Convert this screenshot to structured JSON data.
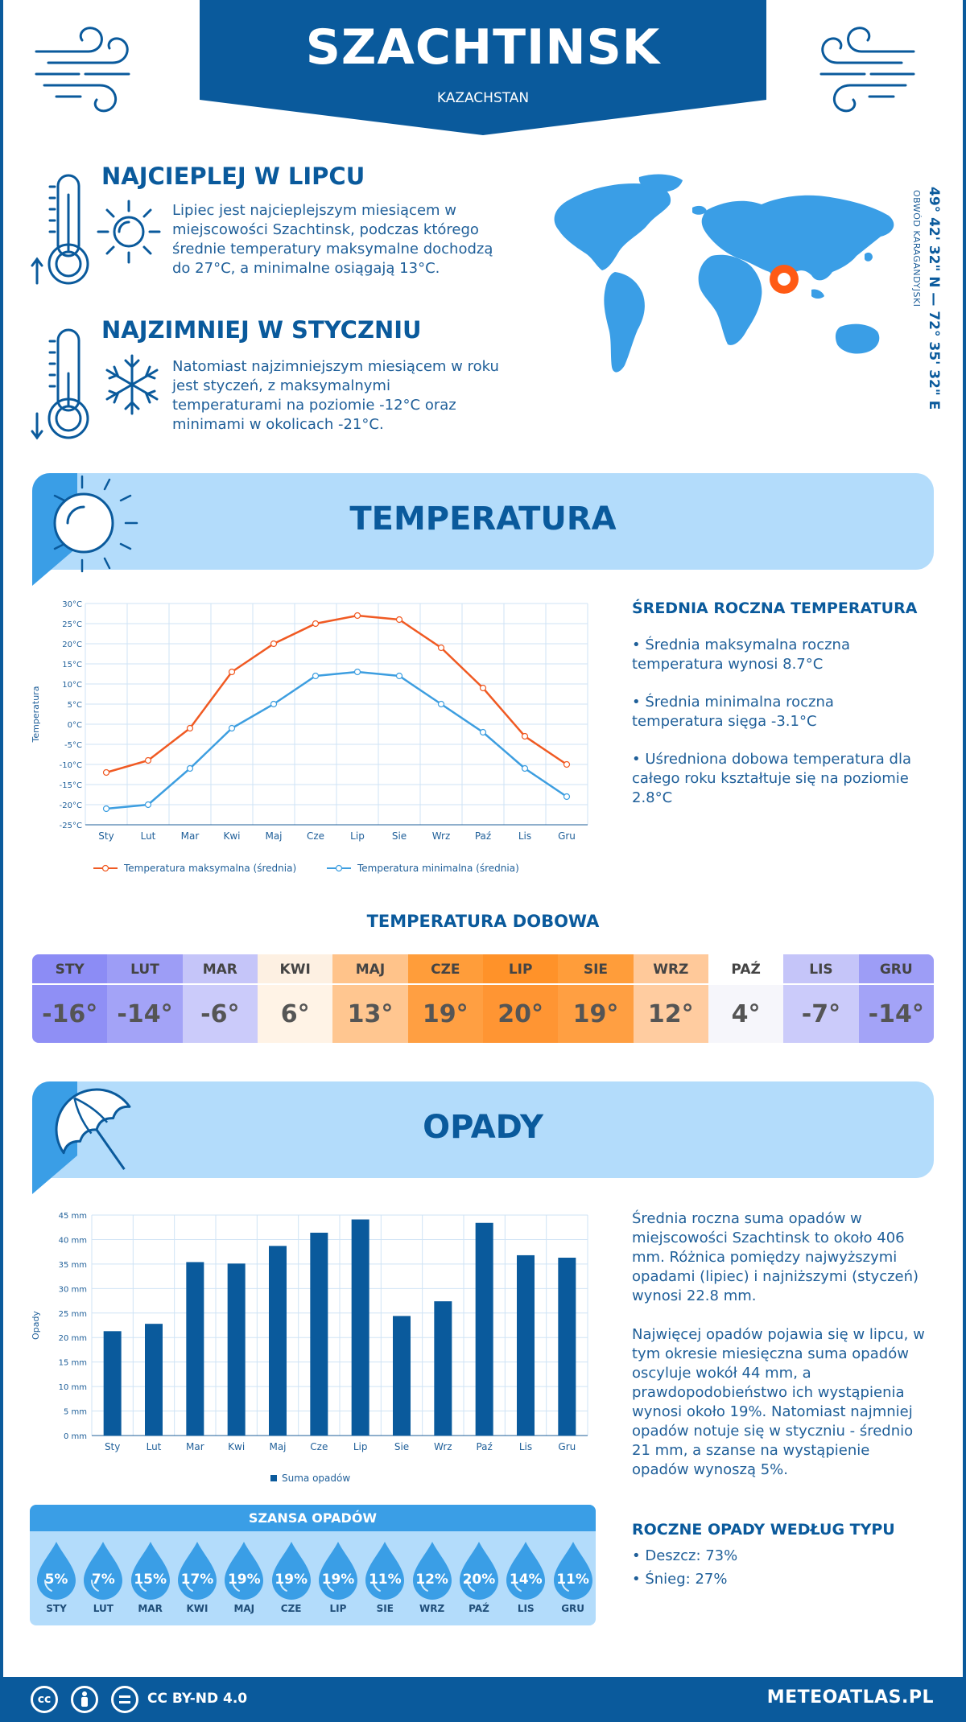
{
  "header": {
    "city": "SZACHTINSK",
    "country": "KAZACHSTAN"
  },
  "warmest": {
    "title": "NAJCIEPLEJ W LIPCU",
    "text": "Lipiec jest najcieplejszym miesiącem w miejscowości Szachtinsk, podczas którego średnie temperatury maksymalne dochodzą do 27°C, a minimalne osiągają 13°C."
  },
  "coldest": {
    "title": "NAJZIMNIEJ W STYCZNIU",
    "text": "Natomiast najzimniejszym miesiącem w roku jest styczeń, z maksymalnymi temperaturami na poziomie -12°C oraz minimami w okolicach -21°C."
  },
  "location": {
    "coords": "49° 42' 32\" N — 72° 35' 32\" E",
    "region": "OBWÓD KARAGANDYJSKI"
  },
  "temperature_section": {
    "title": "TEMPERATURA",
    "summary_title": "ŚREDNIA ROCZNA TEMPERATURA",
    "bullets": [
      "• Średnia maksymalna roczna temperatura wynosi 8.7°C",
      "• Średnia minimalna roczna temperatura sięga -3.1°C",
      "• Uśredniona dobowa temperatura dla całego roku kształtuje się na poziomie 2.8°C"
    ]
  },
  "daily": {
    "title": "TEMPERATURA DOBOWA",
    "months": [
      "STY",
      "LUT",
      "MAR",
      "KWI",
      "MAJ",
      "CZE",
      "LIP",
      "SIE",
      "WRZ",
      "PAŹ",
      "LIS",
      "GRU"
    ],
    "values": [
      "-16°",
      "-14°",
      "-6°",
      "6°",
      "13°",
      "19°",
      "20°",
      "19°",
      "12°",
      "4°",
      "-7°",
      "-14°"
    ],
    "head_colors": [
      "#8c8cf5",
      "#9d9df6",
      "#c5c5f9",
      "#fdf0e2",
      "#ffc38a",
      "#ff9d3a",
      "#ff9229",
      "#ff9d3a",
      "#ffc99a",
      "#ffffff",
      "#c5c5f9",
      "#9d9df6"
    ],
    "value_colors": [
      "#8f8ff5",
      "#a3a3f7",
      "#cbcbfa",
      "#fff3e6",
      "#ffc690",
      "#ff9f42",
      "#ff9533",
      "#ff9f42",
      "#ffcca0",
      "#f6f6fb",
      "#cbcbfa",
      "#a3a3f7"
    ]
  },
  "precip_section": {
    "title": "OPADY",
    "text1": "Średnia roczna suma opadów w miejscowości Szachtinsk to około 406 mm. Różnica pomiędzy najwyższymi opadami (lipiec) i najniższymi (styczeń) wynosi 22.8 mm.",
    "text2": "Najwięcej opadów pojawia się w lipcu, w tym okresie miesięczna suma opadów oscyluje wokół 44 mm, a prawdopodobieństwo ich wystąpienia wynosi około 19%. Natomiast najmniej opadów notuje się w styczniu - średnio 21 mm, a szanse na wystąpienie opadów wynoszą 5%.",
    "types_title": "ROCZNE OPADY WEDŁUG TYPU",
    "types": [
      "• Deszcz: 73%",
      "• Śnieg: 27%"
    ]
  },
  "chance": {
    "title": "SZANSA OPADÓW",
    "months": [
      "STY",
      "LUT",
      "MAR",
      "KWI",
      "MAJ",
      "CZE",
      "LIP",
      "SIE",
      "WRZ",
      "PAŹ",
      "LIS",
      "GRU"
    ],
    "values": [
      "5%",
      "7%",
      "15%",
      "17%",
      "19%",
      "19%",
      "19%",
      "11%",
      "12%",
      "20%",
      "14%",
      "11%"
    ]
  },
  "footer": {
    "license": "CC BY-ND 4.0",
    "site": "METEOATLAS.PL"
  },
  "chart_data": [
    {
      "type": "line",
      "categories": [
        "Sty",
        "Lut",
        "Mar",
        "Kwi",
        "Maj",
        "Cze",
        "Lip",
        "Sie",
        "Wrz",
        "Paź",
        "Lis",
        "Gru"
      ],
      "ylabel": "Temperatura",
      "ylim": [
        -25,
        30
      ],
      "yticks": [
        "30°C",
        "25°C",
        "20°C",
        "15°C",
        "10°C",
        "5°C",
        "0°C",
        "-5°C",
        "-10°C",
        "-15°C",
        "-20°C",
        "-25°C"
      ],
      "grid": true,
      "legend": "bottom",
      "series": [
        {
          "name": "Temperatura maksymalna (średnia)",
          "color": "#f05a23",
          "values": [
            -12,
            -9,
            -1,
            13,
            20,
            25,
            27,
            26,
            19,
            9,
            -3,
            -10
          ]
        },
        {
          "name": "Temperatura minimalna (średnia)",
          "color": "#3d9ee0",
          "values": [
            -21,
            -20,
            -11,
            -1,
            5,
            12,
            13,
            12,
            5,
            -2,
            -11,
            -18
          ]
        }
      ]
    },
    {
      "type": "bar",
      "categories": [
        "Sty",
        "Lut",
        "Mar",
        "Kwi",
        "Maj",
        "Cze",
        "Lip",
        "Sie",
        "Wrz",
        "Paź",
        "Lis",
        "Gru"
      ],
      "ylabel": "Opady",
      "ylim": [
        0,
        45
      ],
      "yticks": [
        "45 mm",
        "40 mm",
        "35 mm",
        "30 mm",
        "25 mm",
        "20 mm",
        "15 mm",
        "10 mm",
        "5 mm",
        "0 mm"
      ],
      "grid": true,
      "legend": "bottom",
      "series": [
        {
          "name": "Suma opadów",
          "color": "#0a5a9c",
          "values": [
            21.3,
            22.8,
            35.4,
            35.1,
            38.7,
            41.4,
            44.1,
            24.4,
            27.4,
            43.4,
            36.8,
            36.3
          ]
        }
      ]
    }
  ]
}
